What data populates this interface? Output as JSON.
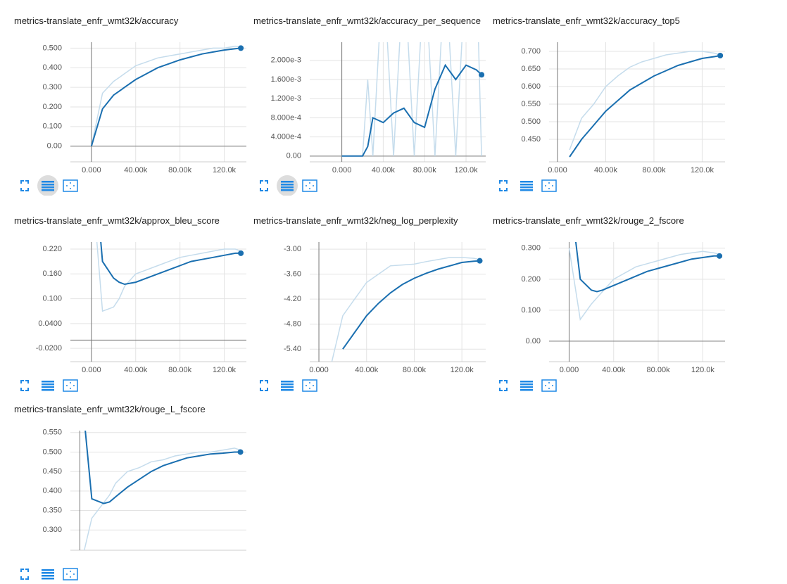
{
  "chart_data": [
    {
      "type": "line",
      "title": "metrics-translate_enfr_wmt32k/accuracy",
      "x": [
        0,
        10000,
        20000,
        25000,
        30000,
        40000,
        50000,
        60000,
        70000,
        80000,
        90000,
        100000,
        110000,
        120000,
        130000,
        135000
      ],
      "series": [
        {
          "color": "#c5dcec",
          "values": [
            0,
            0.27,
            0.33,
            0.35,
            0.37,
            0.41,
            0.43,
            0.45,
            0.46,
            0.47,
            0.48,
            0.49,
            0.5,
            0.5,
            0.51,
            0.505
          ]
        },
        {
          "color": "#1a6fb0",
          "values": [
            0,
            0.19,
            0.26,
            0.28,
            0.3,
            0.34,
            0.37,
            0.4,
            0.42,
            0.44,
            0.455,
            0.47,
            0.48,
            0.49,
            0.497,
            0.5
          ]
        }
      ],
      "xlim": [
        -19000,
        140000
      ],
      "xticks": [
        {
          "value": 0,
          "label": "0.000"
        },
        {
          "value": 40000,
          "label": "40.00k"
        },
        {
          "value": 80000,
          "label": "80.00k"
        },
        {
          "value": 120000,
          "label": "120.0k"
        }
      ],
      "ylim": [
        -0.08,
        0.53
      ],
      "yticks": [
        {
          "value": 0,
          "label": "0.00"
        },
        {
          "value": 0.1,
          "label": "0.100"
        },
        {
          "value": 0.2,
          "label": "0.200"
        },
        {
          "value": 0.3,
          "label": "0.300"
        },
        {
          "value": 0.4,
          "label": "0.400"
        },
        {
          "value": 0.5,
          "label": "0.500"
        }
      ],
      "grid": true
    },
    {
      "type": "line",
      "title": "metrics-translate_enfr_wmt32k/accuracy_per_sequence",
      "x": [
        0,
        10000,
        20000,
        25000,
        30000,
        40000,
        50000,
        60000,
        70000,
        80000,
        90000,
        100000,
        110000,
        120000,
        130000,
        135000
      ],
      "series": [
        {
          "color": "#c5dcec",
          "values": [
            0,
            0,
            0,
            0.0016,
            0,
            0.004,
            0,
            0.004,
            0,
            0.004,
            0,
            0.004,
            0,
            0.004,
            0.004,
            0
          ]
        },
        {
          "color": "#1a6fb0",
          "values": [
            0,
            0,
            0,
            0.0002,
            0.0008,
            0.0007,
            0.0009,
            0.001,
            0.0007,
            0.0006,
            0.0014,
            0.0019,
            0.0016,
            0.0019,
            0.0018,
            0.0017
          ]
        }
      ],
      "xlim": [
        -31000,
        139000
      ],
      "xticks": [
        {
          "value": 0,
          "label": "0.000"
        },
        {
          "value": 40000,
          "label": "40.00k"
        },
        {
          "value": 80000,
          "label": "80.00k"
        },
        {
          "value": 120000,
          "label": "120.0k"
        }
      ],
      "ylim": [
        -0.00012,
        0.00238
      ],
      "yticks": [
        {
          "value": 0,
          "label": "0.00"
        },
        {
          "value": 0.0004,
          "label": "4.000e-4"
        },
        {
          "value": 0.0008,
          "label": "8.000e-4"
        },
        {
          "value": 0.0012,
          "label": "1.200e-3"
        },
        {
          "value": 0.0016,
          "label": "1.600e-3"
        },
        {
          "value": 0.002,
          "label": "2.000e-3"
        }
      ],
      "grid": true
    },
    {
      "type": "line",
      "title": "metrics-translate_enfr_wmt32k/accuracy_top5",
      "x": [
        0,
        10000,
        20000,
        25000,
        30000,
        40000,
        50000,
        60000,
        70000,
        80000,
        90000,
        100000,
        110000,
        120000,
        130000,
        135000
      ],
      "series": [
        {
          "color": "#c5dcec",
          "values": [
            null,
            0.42,
            0.51,
            0.53,
            0.55,
            0.6,
            0.63,
            0.655,
            0.67,
            0.68,
            0.69,
            0.695,
            0.7,
            0.7,
            0.695,
            0.69
          ]
        },
        {
          "color": "#1a6fb0",
          "values": [
            null,
            0.4,
            0.45,
            0.47,
            0.49,
            0.53,
            0.56,
            0.59,
            0.61,
            0.63,
            0.645,
            0.66,
            0.67,
            0.68,
            0.685,
            0.688
          ]
        }
      ],
      "xlim": [
        -7000,
        139000
      ],
      "xticks": [
        {
          "value": 0,
          "label": "0.000"
        },
        {
          "value": 40000,
          "label": "40.00k"
        },
        {
          "value": 80000,
          "label": "80.00k"
        },
        {
          "value": 120000,
          "label": "120.0k"
        }
      ],
      "ylim": [
        0.386,
        0.726
      ],
      "yticks": [
        {
          "value": 0.45,
          "label": "0.450"
        },
        {
          "value": 0.5,
          "label": "0.500"
        },
        {
          "value": 0.55,
          "label": "0.550"
        },
        {
          "value": 0.6,
          "label": "0.600"
        },
        {
          "value": 0.65,
          "label": "0.650"
        },
        {
          "value": 0.7,
          "label": "0.700"
        }
      ],
      "grid": true
    },
    {
      "type": "line",
      "title": "metrics-translate_enfr_wmt32k/approx_bleu_score",
      "x": [
        0,
        10000,
        20000,
        25000,
        30000,
        40000,
        50000,
        60000,
        70000,
        80000,
        90000,
        100000,
        110000,
        120000,
        130000,
        135000
      ],
      "series": [
        {
          "color": "#c5dcec",
          "values": [
            0.4,
            0.07,
            0.08,
            0.1,
            0.13,
            0.16,
            0.17,
            0.18,
            0.19,
            0.2,
            0.205,
            0.21,
            0.215,
            0.22,
            0.22,
            0.215
          ]
        },
        {
          "color": "#1a6fb0",
          "values": [
            0.5,
            0.19,
            0.15,
            0.14,
            0.135,
            0.14,
            0.15,
            0.16,
            0.17,
            0.18,
            0.19,
            0.195,
            0.2,
            0.205,
            0.21,
            0.21
          ]
        }
      ],
      "xlim": [
        -19000,
        140000
      ],
      "xticks": [
        {
          "value": 0,
          "label": "0.000"
        },
        {
          "value": 40000,
          "label": "40.00k"
        },
        {
          "value": 80000,
          "label": "80.00k"
        },
        {
          "value": 120000,
          "label": "120.0k"
        }
      ],
      "ylim": [
        -0.052,
        0.237
      ],
      "yticks": [
        {
          "value": -0.02,
          "label": "-0.0200"
        },
        {
          "value": 0.04,
          "label": "0.0400"
        },
        {
          "value": 0.1,
          "label": "0.100"
        },
        {
          "value": 0.16,
          "label": "0.160"
        },
        {
          "value": 0.22,
          "label": "0.220"
        }
      ],
      "grid": true
    },
    {
      "type": "line",
      "title": "metrics-translate_enfr_wmt32k/neg_log_perplexity",
      "x": [
        0,
        10000,
        20000,
        25000,
        30000,
        40000,
        50000,
        60000,
        70000,
        80000,
        90000,
        100000,
        110000,
        120000,
        130000,
        135000
      ],
      "series": [
        {
          "color": "#c5dcec",
          "values": [
            null,
            -5.8,
            -4.6,
            -4.4,
            -4.2,
            -3.8,
            -3.6,
            -3.4,
            -3.38,
            -3.36,
            -3.3,
            -3.25,
            -3.2,
            -3.2,
            -3.22,
            -3.25
          ]
        },
        {
          "color": "#1a6fb0",
          "values": [
            null,
            null,
            -5.4,
            -5.2,
            -5,
            -4.6,
            -4.3,
            -4.05,
            -3.85,
            -3.7,
            -3.58,
            -3.48,
            -3.4,
            -3.32,
            -3.29,
            -3.28
          ]
        }
      ],
      "xlim": [
        -7700,
        140000
      ],
      "xticks": [
        {
          "value": 0,
          "label": "0.000"
        },
        {
          "value": 40000,
          "label": "40.00k"
        },
        {
          "value": 80000,
          "label": "80.00k"
        },
        {
          "value": 120000,
          "label": "120.0k"
        }
      ],
      "ylim": [
        -5.7,
        -2.83
      ],
      "yticks": [
        {
          "value": -5.4,
          "label": "-5.40"
        },
        {
          "value": -4.8,
          "label": "-4.80"
        },
        {
          "value": -4.2,
          "label": "-4.20"
        },
        {
          "value": -3.6,
          "label": "-3.60"
        },
        {
          "value": -3,
          "label": "-3.00"
        }
      ],
      "grid": true
    },
    {
      "type": "line",
      "title": "metrics-translate_enfr_wmt32k/rouge_2_fscore",
      "x": [
        0,
        10000,
        20000,
        25000,
        30000,
        40000,
        50000,
        60000,
        70000,
        80000,
        90000,
        100000,
        110000,
        120000,
        130000,
        135000
      ],
      "series": [
        {
          "color": "#c5dcec",
          "values": [
            0.3,
            0.07,
            0.12,
            0.14,
            0.16,
            0.2,
            0.22,
            0.24,
            0.25,
            0.26,
            0.27,
            0.28,
            0.285,
            0.29,
            0.285,
            0.28
          ]
        },
        {
          "color": "#1a6fb0",
          "values": [
            0.5,
            0.2,
            0.165,
            0.16,
            0.165,
            0.18,
            0.195,
            0.21,
            0.225,
            0.235,
            0.245,
            0.255,
            0.265,
            0.27,
            0.275,
            0.275
          ]
        }
      ],
      "xlim": [
        -18000,
        140000
      ],
      "xticks": [
        {
          "value": 0,
          "label": "0.000"
        },
        {
          "value": 40000,
          "label": "40.00k"
        },
        {
          "value": 80000,
          "label": "80.00k"
        },
        {
          "value": 120000,
          "label": "120.0k"
        }
      ],
      "ylim": [
        -0.066,
        0.32
      ],
      "yticks": [
        {
          "value": 0,
          "label": "0.00"
        },
        {
          "value": 0.1,
          "label": "0.100"
        },
        {
          "value": 0.2,
          "label": "0.200"
        },
        {
          "value": 0.3,
          "label": "0.300"
        }
      ],
      "grid": true
    },
    {
      "type": "line",
      "title": "metrics-translate_enfr_wmt32k/rouge_L_fscore",
      "x": [
        0,
        10000,
        20000,
        25000,
        30000,
        40000,
        50000,
        60000,
        70000,
        80000,
        90000,
        100000,
        110000,
        120000,
        130000,
        135000
      ],
      "series": [
        {
          "color": "#c5dcec",
          "values": [
            0.2,
            0.33,
            0.37,
            0.39,
            0.42,
            0.45,
            0.46,
            0.475,
            0.48,
            0.49,
            0.495,
            0.5,
            0.5,
            0.505,
            0.51,
            0.505
          ]
        },
        {
          "color": "#1a6fb0",
          "values": [
            0.7,
            0.38,
            0.368,
            0.372,
            0.385,
            0.41,
            0.43,
            0.45,
            0.465,
            0.475,
            0.485,
            0.49,
            0.495,
            0.497,
            0.5,
            0.5
          ]
        }
      ],
      "xlim": [
        -8000,
        140000
      ],
      "ylim": [
        0.248,
        0.555
      ],
      "yticks": [
        {
          "value": 0.3,
          "label": "0.300"
        },
        {
          "value": 0.35,
          "label": "0.350"
        },
        {
          "value": 0.4,
          "label": "0.400"
        },
        {
          "value": 0.45,
          "label": "0.450"
        },
        {
          "value": 0.5,
          "label": "0.500"
        },
        {
          "value": 0.55,
          "label": "0.550"
        }
      ],
      "grid": true
    }
  ]
}
